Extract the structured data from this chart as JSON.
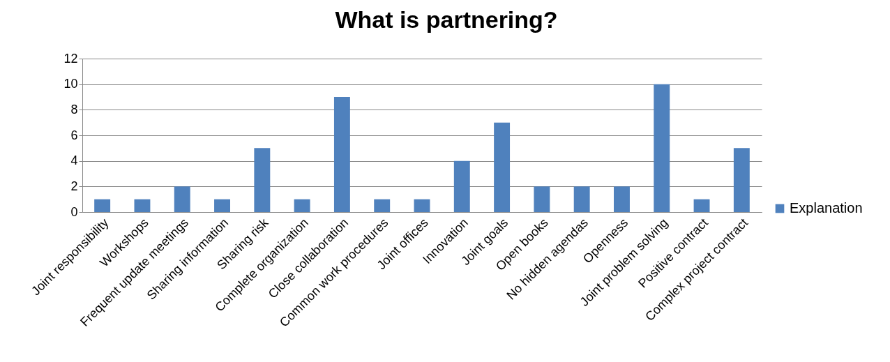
{
  "chart_data": {
    "type": "bar",
    "title": "What is partnering?",
    "categories": [
      "Joint responsibility",
      "Workshops",
      "Frequent update meetings",
      "Sharing information",
      "Sharing risk",
      "Complete organization",
      "Close collaboration",
      "Common work procedures",
      "Joint offices",
      "Innovation",
      "Joint goals",
      "Open books",
      "No hidden agendas",
      "Openness",
      "Joint problem solving",
      "Positive contract",
      "Complex project contract"
    ],
    "series": [
      {
        "name": "Explanation",
        "color": "#4f81bd",
        "values": [
          1,
          1,
          2,
          1,
          5,
          1,
          9,
          1,
          1,
          4,
          7,
          2,
          2,
          2,
          10,
          1,
          5
        ]
      }
    ],
    "ylim": [
      0,
      12
    ],
    "yticks": [
      0,
      2,
      4,
      6,
      8,
      10,
      12
    ],
    "grid": "y",
    "legend": "right"
  }
}
